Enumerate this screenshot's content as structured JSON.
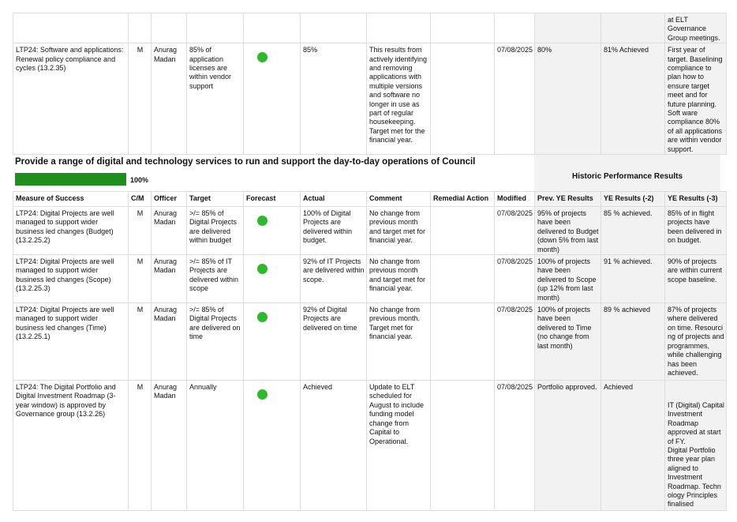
{
  "colors": {
    "on_track": "#2eb82e",
    "progress": "#1e8f1e"
  },
  "top_rows": [
    {
      "measure": "",
      "cm": "",
      "officer": "",
      "target": "",
      "forecast": "",
      "actual": "",
      "comment": "",
      "remedial": "",
      "modified": "",
      "prev": "",
      "ye2": "",
      "ye3": "at ELT Governance Group meetings."
    },
    {
      "measure": "LTP24: Software and applications: Renewal policy compliance and cycles (13.2.35)",
      "cm": "M",
      "officer": "Anurag Madan",
      "target": "85% of application licenses are within vendor support",
      "forecast": "green",
      "actual": "85%",
      "comment": "This results from actively identifying and removing applications with multiple versions and software no longer in use as part of regular housekeeping. Target met for the financial year.",
      "remedial": "",
      "modified": "07/08/2025",
      "prev": "80%",
      "ye2": "81% Achieved",
      "ye3": "First year of target. Baselining compliance to plan how to ensure target meet and for future planning. Soft ware compliance 80% of all applications are within vendor support."
    }
  ],
  "section": {
    "title": "Provide a range of digital and technology services to run and support the day-to-day operations of Council",
    "progress_percent": 100,
    "progress_label": "100%",
    "historic_heading": "Historic Performance Results"
  },
  "headers": [
    "Measure of Success",
    "C/M",
    "Officer",
    "Target",
    "Forecast",
    "Actual",
    "Comment",
    "Remedial Action",
    "Modified",
    "Prev. YE Results",
    "YE Results (-2)",
    "YE Results (-3)"
  ],
  "rows": [
    {
      "measure": "LTP24: Digital Projects are well managed to support wider business led changes (Budget) (13.2.25.2)",
      "cm": "M",
      "officer": "Anurag Madan",
      "target": ">/= 85% of Digital Projects are delivered within budget",
      "forecast": "green",
      "actual": "100% of Digital Projects are delivered within budget.",
      "comment": "No change from previous month and target met for financial year.",
      "remedial": "",
      "modified": "07/08/2025",
      "prev": "95% of projects have been delivered to Budget (down 5% from last month)",
      "ye2": "85 % achieved.",
      "ye3": "85% of in flight projects have been delivered in on budget."
    },
    {
      "measure": "LTP24: Digital Projects are well managed to support wider business led changes (Scope) (13.2.25.3)",
      "cm": "M",
      "officer": "Anurag Madan",
      "target": ">/= 85% of IT Projects are delivered within scope",
      "forecast": "green",
      "actual": "92% of IT Projects are delivered within scope.",
      "comment": "No change from previous month and target met for financial year.",
      "remedial": "",
      "modified": "07/08/2025",
      "prev": "100% of projects have been delivered to Scope (up 12% from last month)",
      "ye2": "91 % achieved.",
      "ye3": "90% of projects are within current scope baseline."
    },
    {
      "measure": "LTP24: Digital Projects are well managed to support wider business led changes (Time) (13.2.25.1)",
      "cm": "M",
      "officer": "Anurag Madan",
      "target": ">/= 85% of Digital Projects are delivered on time",
      "forecast": "green",
      "actual": "92% of Digital Projects are delivered on time",
      "comment": "No change from previous month. Target met for financial year.",
      "remedial": "",
      "modified": "07/08/2025",
      "prev": "100% of projects have been delivered to Time (no change from last month)",
      "ye2": "89 % achieved",
      "ye3": "87% of projects where delivered on time. Resourci ng of projects and programmes, while challenging has been achieved."
    },
    {
      "measure": "LTP24: The Digital Portfolio and Digital Investment Roadmap (3-year window) is approved by Governance group (13.2.26)",
      "cm": "M",
      "officer": "Anurag Madan",
      "target": "Annually",
      "forecast": "green",
      "actual": "Achieved",
      "comment": "Update to ELT scheduled for August to include funding model change from Capital to Operational.",
      "remedial": "",
      "modified": "07/08/2025",
      "prev": "Portfolio approved.",
      "ye2": "Achieved",
      "ye3": " \n\nIT (Digital) Capital Investment Roadmap approved at start of FY.\nDigital Portfolio three year plan aligned to Investment Roadmap. Techn ology Principles finalised"
    }
  ]
}
